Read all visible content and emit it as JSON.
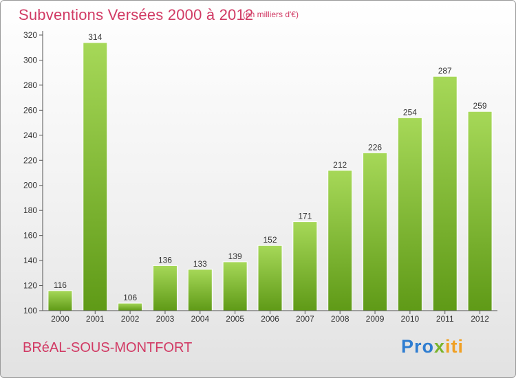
{
  "header": {
    "title": "Subventions Versées 2000 à 2012",
    "subtitle": "(en milliers d'€)"
  },
  "footer": {
    "commune": "BRéAL-SOUS-MONTFORT",
    "brand": "Proxiti",
    "brand_parts": [
      "Pro",
      "x",
      "iti"
    ]
  },
  "colors": {
    "title": "#d13a64",
    "bar_light": "#a6d858",
    "bar_dark": "#5f9a17",
    "axis": "#555555",
    "grid": "#cfcfcf"
  },
  "chart_data": {
    "type": "bar",
    "categories": [
      "2000",
      "2001",
      "2002",
      "2003",
      "2004",
      "2005",
      "2006",
      "2007",
      "2008",
      "2009",
      "2010",
      "2011",
      "2012"
    ],
    "values": [
      116,
      314,
      106,
      136,
      133,
      139,
      152,
      171,
      212,
      226,
      254,
      287,
      259
    ],
    "ylim": [
      100,
      320
    ],
    "yticks": [
      100,
      120,
      140,
      160,
      180,
      200,
      220,
      240,
      260,
      280,
      300,
      320
    ],
    "grid": false,
    "data_labels": true
  }
}
